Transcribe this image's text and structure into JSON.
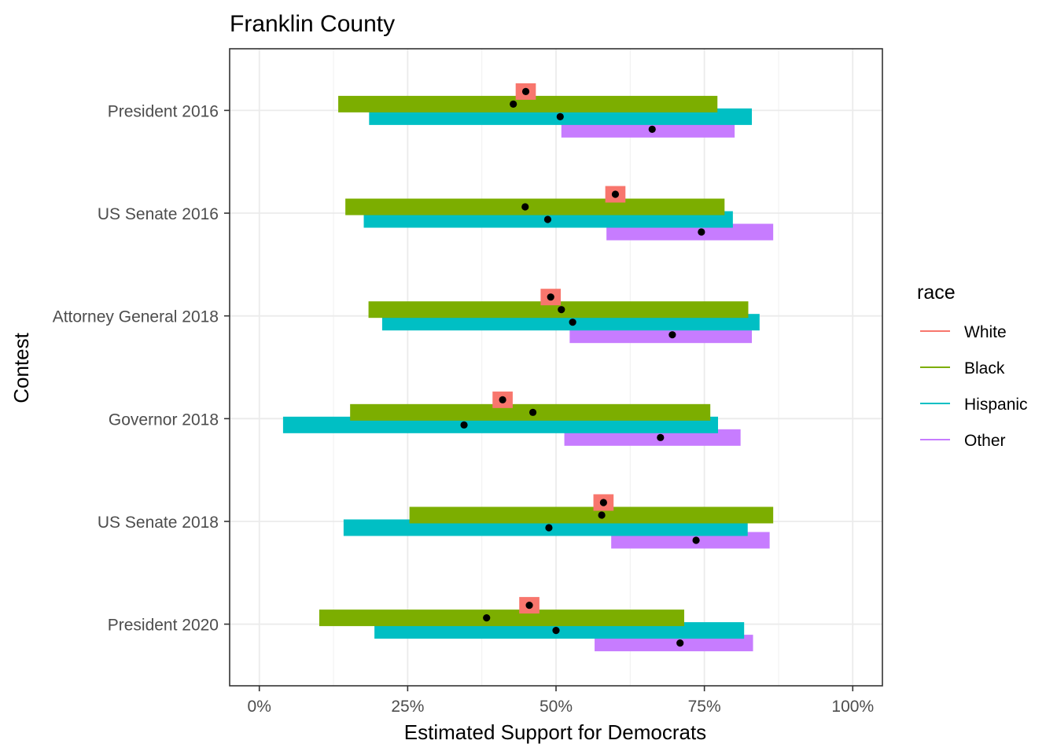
{
  "chart_data": {
    "type": "interval",
    "title": "Franklin County",
    "xlabel": "Estimated Support for Democrats",
    "ylabel": "Contest",
    "xlim": [
      -0.05,
      1.05
    ],
    "x_ticks": [
      0,
      0.25,
      0.5,
      0.75,
      1.0
    ],
    "x_tick_labels": [
      "0%",
      "25%",
      "50%",
      "75%",
      "100%"
    ],
    "grid": true,
    "legend": {
      "title": "race",
      "position": "right"
    },
    "categories": [
      "President 2016",
      "US Senate 2016",
      "Attorney General 2018",
      "Governor 2018",
      "US Senate 2018",
      "President 2020"
    ],
    "series": [
      {
        "name": "White",
        "color": "#F8766D",
        "points": [
          {
            "contest": "President 2016",
            "estimate": 0.449,
            "lower": 0.432,
            "upper": 0.466
          },
          {
            "contest": "US Senate 2016",
            "estimate": 0.6,
            "lower": 0.583,
            "upper": 0.617
          },
          {
            "contest": "Attorney General 2018",
            "estimate": 0.491,
            "lower": 0.474,
            "upper": 0.508
          },
          {
            "contest": "Governor 2018",
            "estimate": 0.41,
            "lower": 0.393,
            "upper": 0.427
          },
          {
            "contest": "US Senate 2018",
            "estimate": 0.58,
            "lower": 0.563,
            "upper": 0.597
          },
          {
            "contest": "President 2020",
            "estimate": 0.455,
            "lower": 0.438,
            "upper": 0.472
          }
        ]
      },
      {
        "name": "Black",
        "color": "#7CAE00",
        "points": [
          {
            "contest": "President 2016",
            "estimate": 0.428,
            "lower": 0.133,
            "upper": 0.772
          },
          {
            "contest": "US Senate 2016",
            "estimate": 0.448,
            "lower": 0.145,
            "upper": 0.784
          },
          {
            "contest": "Attorney General 2018",
            "estimate": 0.509,
            "lower": 0.184,
            "upper": 0.824
          },
          {
            "contest": "Governor 2018",
            "estimate": 0.461,
            "lower": 0.153,
            "upper": 0.76
          },
          {
            "contest": "US Senate 2018",
            "estimate": 0.577,
            "lower": 0.253,
            "upper": 0.866
          },
          {
            "contest": "President 2020",
            "estimate": 0.383,
            "lower": 0.101,
            "upper": 0.716
          }
        ]
      },
      {
        "name": "Hispanic",
        "color": "#00BFC4",
        "points": [
          {
            "contest": "President 2016",
            "estimate": 0.507,
            "lower": 0.185,
            "upper": 0.83
          },
          {
            "contest": "US Senate 2016",
            "estimate": 0.486,
            "lower": 0.176,
            "upper": 0.798
          },
          {
            "contest": "Attorney General 2018",
            "estimate": 0.528,
            "lower": 0.207,
            "upper": 0.843
          },
          {
            "contest": "Governor 2018",
            "estimate": 0.345,
            "lower": 0.04,
            "upper": 0.773
          },
          {
            "contest": "US Senate 2018",
            "estimate": 0.488,
            "lower": 0.142,
            "upper": 0.823
          },
          {
            "contest": "President 2020",
            "estimate": 0.5,
            "lower": 0.194,
            "upper": 0.817
          }
        ]
      },
      {
        "name": "Other",
        "color": "#C77CFF",
        "points": [
          {
            "contest": "President 2016",
            "estimate": 0.662,
            "lower": 0.509,
            "upper": 0.801
          },
          {
            "contest": "US Senate 2016",
            "estimate": 0.745,
            "lower": 0.585,
            "upper": 0.866
          },
          {
            "contest": "Attorney General 2018",
            "estimate": 0.696,
            "lower": 0.523,
            "upper": 0.83
          },
          {
            "contest": "Governor 2018",
            "estimate": 0.676,
            "lower": 0.514,
            "upper": 0.811
          },
          {
            "contest": "US Senate 2018",
            "estimate": 0.736,
            "lower": 0.593,
            "upper": 0.86
          },
          {
            "contest": "President 2020",
            "estimate": 0.709,
            "lower": 0.565,
            "upper": 0.832
          }
        ]
      }
    ]
  }
}
